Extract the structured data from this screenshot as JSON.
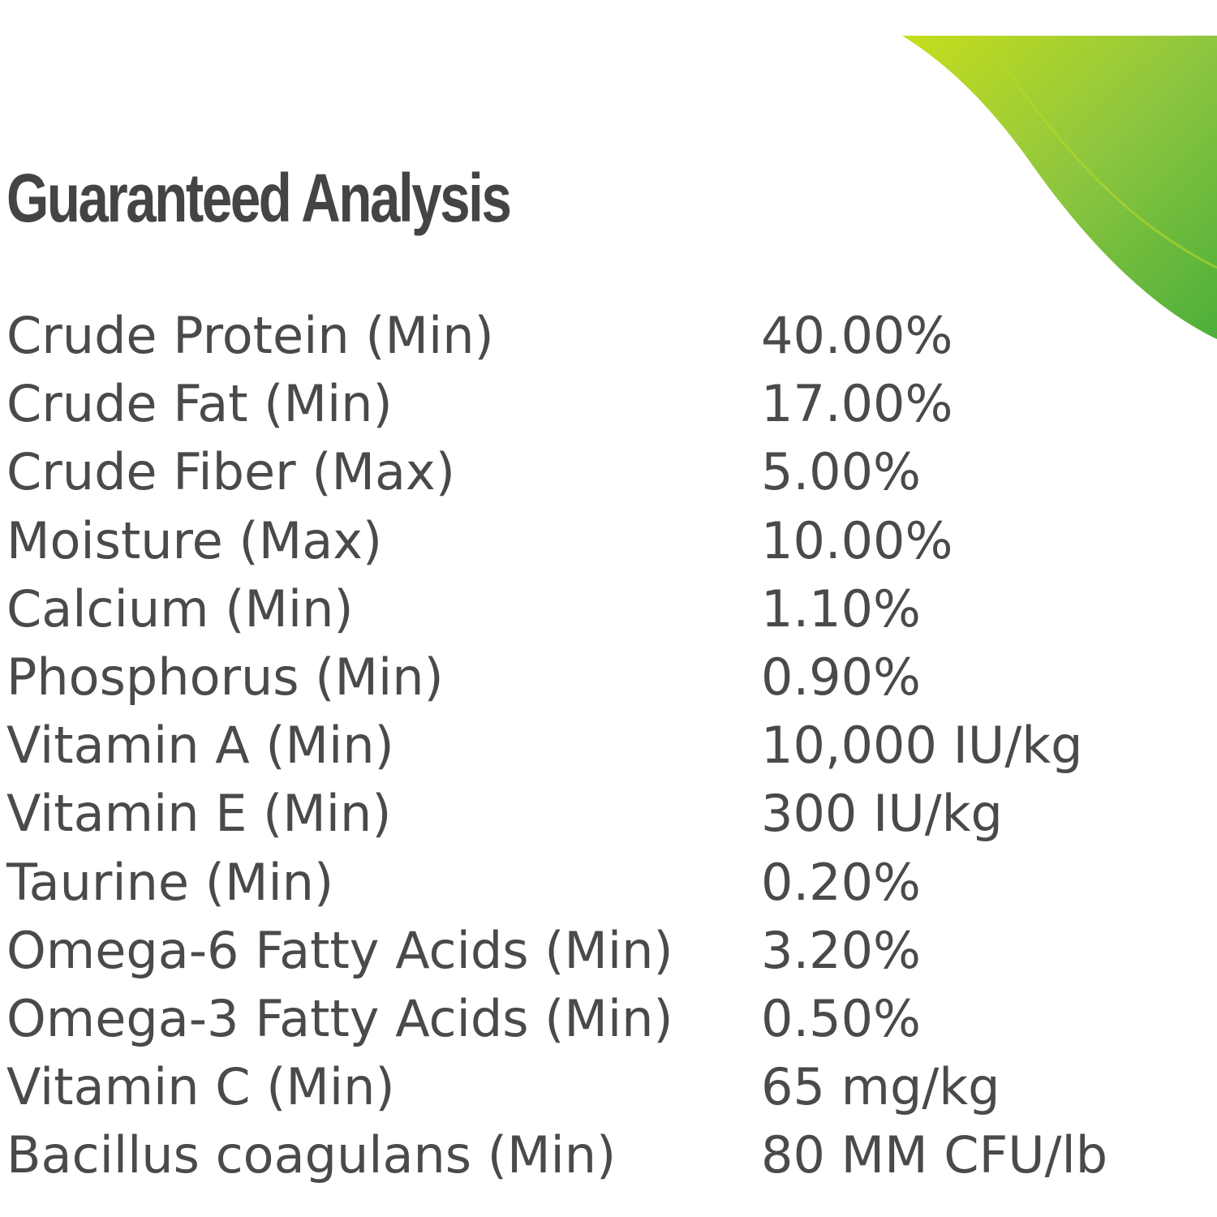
{
  "header": {
    "title": "Guaranteed Analysis"
  },
  "table": {
    "rows": [
      [
        "Crude Protein (Min)",
        "40.00%"
      ],
      [
        "Crude Fat (Min)",
        "17.00%"
      ],
      [
        "Crude Fiber (Max)",
        "5.00%"
      ],
      [
        "Moisture (Max)",
        "10.00%"
      ],
      [
        "Calcium (Min)",
        "1.10%"
      ],
      [
        "Phosphorus (Min)",
        "0.90%"
      ],
      [
        "Vitamin A (Min)",
        "10,000 IU/kg"
      ],
      [
        "Vitamin E (Min)",
        "300 IU/kg"
      ],
      [
        "Taurine (Min)",
        "0.20%"
      ],
      [
        "Omega-6 Fatty Acids (Min)",
        "3.20%"
      ],
      [
        "Omega-3 Fatty Acids (Min)",
        "0.50%"
      ],
      [
        "Vitamin C (Min)",
        "65 mg/kg"
      ],
      [
        "Bacillus coagulans (Min)",
        "80 MM CFU/lb"
      ]
    ]
  }
}
